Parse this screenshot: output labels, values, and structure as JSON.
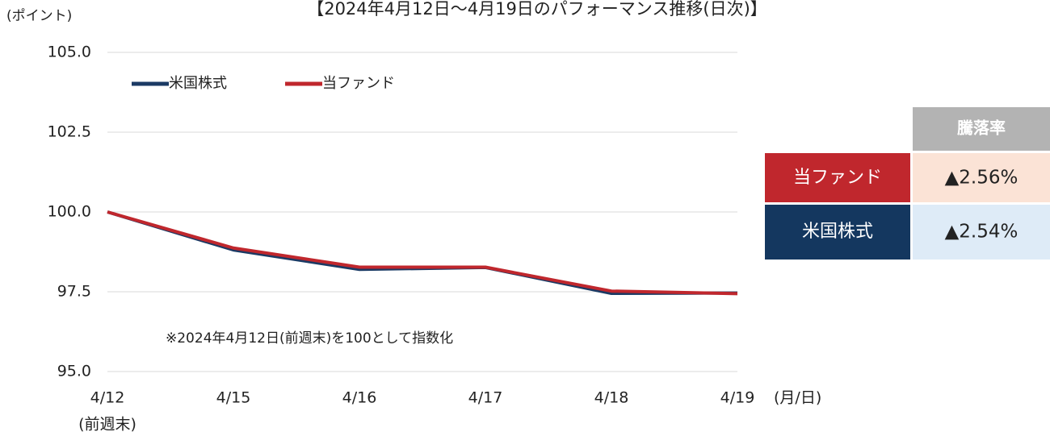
{
  "chart_data": {
    "type": "line",
    "title": "【2024年4月12日～4月19日のパフォーマンス推移(日次)】",
    "y_label": "(ポイント)",
    "x_label": "(月/日)",
    "x_sublabel": "(前週末)",
    "annotation": "※2024年4月12日(前週末)を100として指数化",
    "categories": [
      "4/12",
      "4/15",
      "4/16",
      "4/17",
      "4/18",
      "4/19"
    ],
    "series": [
      {
        "name": "米国株式",
        "color": "#1b3a64",
        "values": [
          100,
          98.81,
          98.2,
          98.26,
          97.45,
          97.46
        ]
      },
      {
        "name": "当ファンド",
        "color": "#c0272d",
        "values": [
          100,
          98.87,
          98.27,
          98.27,
          97.52,
          97.44
        ]
      }
    ],
    "ylim": [
      95,
      105
    ],
    "yticks": [
      {
        "value": 95,
        "label": "95.0"
      },
      97.5,
      {
        "value": 100,
        "label": "100.0"
      },
      102.5,
      {
        "value": 105,
        "label": "105.0"
      }
    ],
    "grid": true,
    "legend": "top-left"
  },
  "table": {
    "header": "騰落率",
    "rows": [
      [
        "当ファンド",
        "▲2.56%"
      ],
      [
        "米国株式",
        "▲2.54%"
      ]
    ]
  }
}
